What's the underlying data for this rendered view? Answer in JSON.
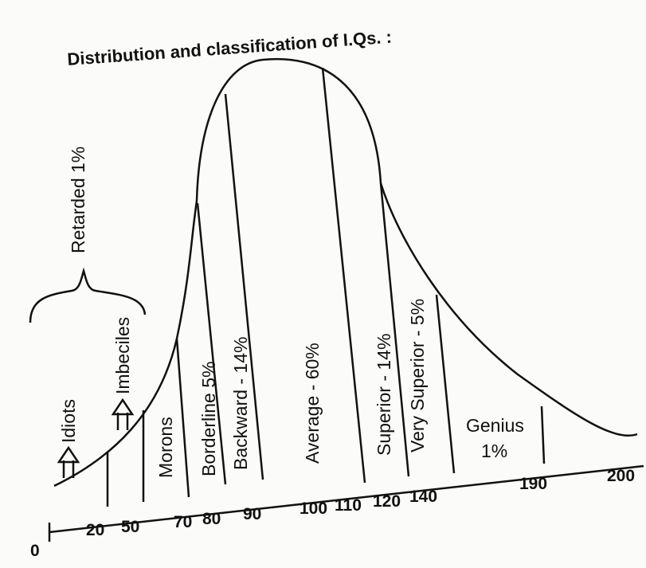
{
  "title": "Distribution and classification of I.Qs. :",
  "group": {
    "label": "Retarded 1%"
  },
  "regions": [
    "Idiots",
    "Imbeciles",
    "Morons",
    "Borderline 5%",
    "Backward - 14%",
    "Average - 60%",
    "Superior - 14%",
    "Very Superior - 5%"
  ],
  "genius": {
    "label": "Genius",
    "share": "1%"
  },
  "axis": {
    "ticks": [
      "0",
      "20",
      "50",
      "70",
      "80",
      "90",
      "100",
      "110",
      "120",
      "140",
      "190",
      "200"
    ]
  }
}
